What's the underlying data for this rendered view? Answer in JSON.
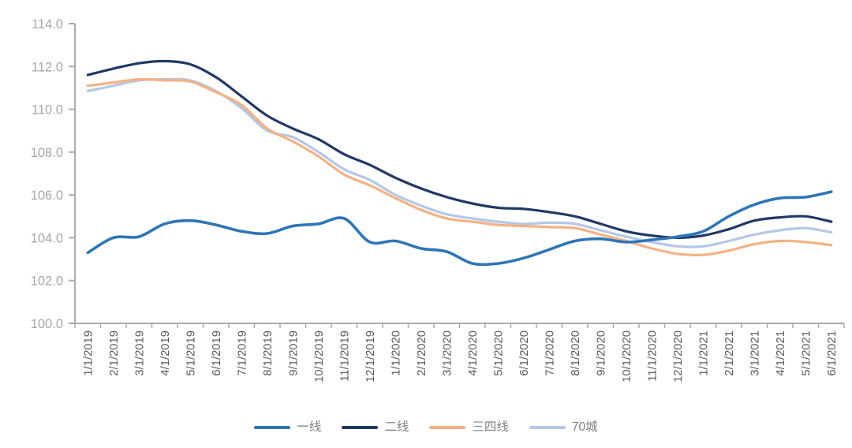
{
  "chart_data": {
    "type": "line",
    "title": "",
    "smooth": true,
    "grid": false,
    "legend_position": "bottom",
    "ylim": [
      100,
      114
    ],
    "ytick_step": 2,
    "ytick_labels": [
      "100.0",
      "102.0",
      "104.0",
      "106.0",
      "108.0",
      "110.0",
      "112.0",
      "114.0"
    ],
    "axis_color": "#ababab",
    "y_label_color": "#a6a6a6",
    "x_label_color": "#595959",
    "legend_label_color": "#7f7f7f",
    "x_categories": [
      "1/1/2019",
      "2/1/2019",
      "3/1/2019",
      "4/1/2019",
      "5/1/2019",
      "6/1/2019",
      "7/1/2019",
      "8/1/2019",
      "9/1/2019",
      "10/1/2019",
      "11/1/2019",
      "12/1/2019",
      "1/1/2020",
      "2/1/2020",
      "3/1/2020",
      "4/1/2020",
      "5/1/2020",
      "6/1/2020",
      "7/1/2020",
      "8/1/2020",
      "9/1/2020",
      "10/1/2020",
      "11/1/2020",
      "12/1/2020",
      "1/1/2021",
      "2/1/2021",
      "3/1/2021",
      "4/1/2021",
      "5/1/2021",
      "6/1/2021"
    ],
    "series": [
      {
        "name": "一线",
        "color": "#2e75b6",
        "values": [
          103.3,
          104.0,
          104.05,
          104.65,
          104.8,
          104.6,
          104.3,
          104.2,
          104.55,
          104.65,
          104.9,
          103.8,
          103.85,
          103.5,
          103.35,
          102.8,
          102.8,
          103.05,
          103.45,
          103.85,
          103.95,
          103.8,
          103.9,
          104.05,
          104.3,
          105.0,
          105.55,
          105.85,
          105.9,
          106.15
        ]
      },
      {
        "name": "二线",
        "color": "#203864",
        "values": [
          111.6,
          111.9,
          112.15,
          112.25,
          112.1,
          111.5,
          110.6,
          109.7,
          109.1,
          108.6,
          107.9,
          107.4,
          106.8,
          106.3,
          105.9,
          105.6,
          105.4,
          105.35,
          105.2,
          105.0,
          104.65,
          104.3,
          104.1,
          104.0,
          104.1,
          104.4,
          104.8,
          104.95,
          105.0,
          104.75
        ]
      },
      {
        "name": "三四线",
        "color": "#f4b183",
        "values": [
          111.1,
          111.25,
          111.4,
          111.35,
          111.3,
          110.8,
          110.2,
          109.1,
          108.5,
          107.8,
          106.95,
          106.45,
          105.85,
          105.3,
          104.9,
          104.75,
          104.6,
          104.55,
          104.5,
          104.45,
          104.15,
          103.85,
          103.5,
          103.25,
          103.2,
          103.4,
          103.7,
          103.85,
          103.8,
          103.65
        ]
      },
      {
        "name": "70城",
        "color": "#b4c7e7",
        "values": [
          110.85,
          111.1,
          111.35,
          111.4,
          111.35,
          110.85,
          110.05,
          109.0,
          108.7,
          108.0,
          107.2,
          106.7,
          106.0,
          105.5,
          105.1,
          104.9,
          104.75,
          104.65,
          104.7,
          104.65,
          104.35,
          104.05,
          103.8,
          103.6,
          103.6,
          103.85,
          104.15,
          104.35,
          104.45,
          104.25
        ]
      }
    ]
  }
}
